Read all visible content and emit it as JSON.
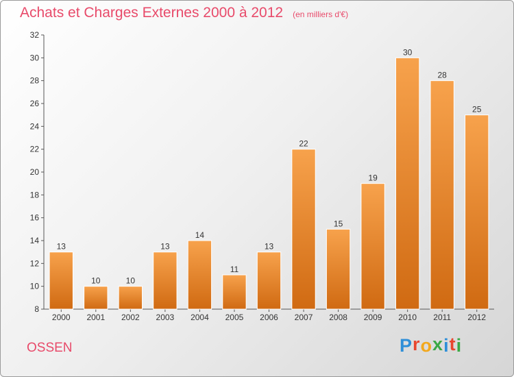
{
  "header": {
    "title": "Achats et Charges Externes 2000 à 2012",
    "subtitle": "(en milliers d'€)"
  },
  "footer": {
    "commune": "OSSEN",
    "brand": "Proxiti",
    "brand_colors": [
      "#2f8fd8",
      "#e8462e",
      "#f2a81d",
      "#3aa845",
      "#2f8fd8",
      "#e8462e",
      "#3aa845"
    ]
  },
  "colors": {
    "accent": "#e84a6a",
    "bar_light": "#f7a24c",
    "bar_dark": "#d06a12"
  },
  "chart_data": {
    "type": "bar",
    "title": "Achats et Charges Externes 2000 à 2012",
    "subtitle": "(en milliers d'€)",
    "categories": [
      "2000",
      "2001",
      "2002",
      "2003",
      "2004",
      "2005",
      "2006",
      "2007",
      "2008",
      "2009",
      "2010",
      "2011",
      "2012"
    ],
    "values": [
      13,
      10,
      10,
      13,
      14,
      11,
      13,
      22,
      15,
      19,
      30,
      28,
      25
    ],
    "ylim": [
      8,
      32
    ],
    "yticks": [
      8,
      10,
      12,
      14,
      16,
      18,
      20,
      22,
      24,
      26,
      28,
      30,
      32
    ],
    "grid": false,
    "legend": "none"
  }
}
